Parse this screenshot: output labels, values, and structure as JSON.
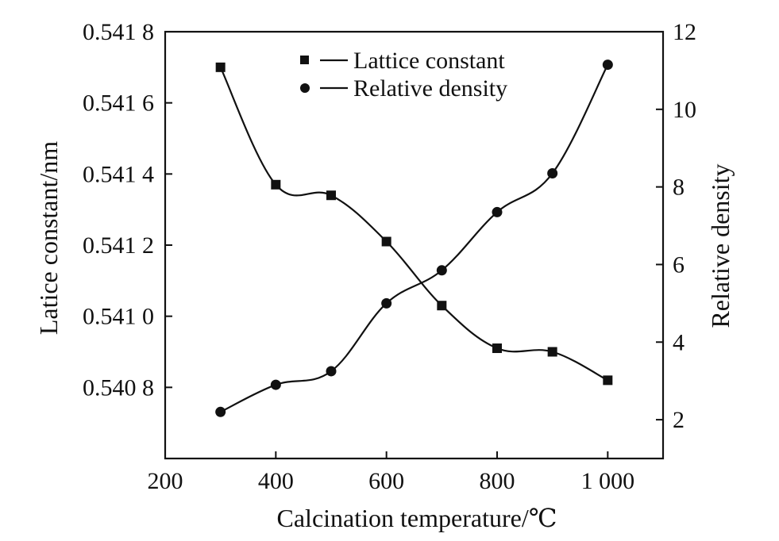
{
  "chart_data": {
    "type": "line",
    "x": [
      300,
      400,
      500,
      600,
      700,
      800,
      900,
      1000
    ],
    "xlabel": "Calcination temperature/℃",
    "xlim": [
      200,
      1100
    ],
    "xticks": [
      200,
      400,
      600,
      800,
      1000
    ],
    "xtick_labels": [
      "200",
      "400",
      "600",
      "800",
      "1 000"
    ],
    "y_left": {
      "label": "Latice constant/nm",
      "lim": [
        0.5406,
        0.5418
      ],
      "ticks": [
        0.5408,
        0.541,
        0.5412,
        0.5414,
        0.5416,
        0.5418
      ],
      "tick_labels": [
        "0.540 8",
        "0.541 0",
        "0.541 2",
        "0.541 4",
        "0.541 6",
        "0.541 8"
      ]
    },
    "y_right": {
      "label": "Relative density",
      "lim": [
        1,
        12
      ],
      "ticks": [
        2,
        4,
        6,
        8,
        10,
        12
      ],
      "tick_labels": [
        "2",
        "4",
        "6",
        "8",
        "10",
        "12"
      ]
    },
    "series": [
      {
        "name": "Lattice constant",
        "axis": "left",
        "marker": "square",
        "values": [
          0.5417,
          0.54137,
          0.54134,
          0.54121,
          0.54103,
          0.54091,
          0.5409,
          0.54082
        ]
      },
      {
        "name": "Relative density",
        "axis": "right",
        "marker": "circle",
        "values": [
          2.2,
          2.9,
          3.25,
          5.0,
          5.85,
          7.35,
          8.35,
          11.15
        ]
      }
    ],
    "legend_position": "top-center",
    "grid": false
  }
}
